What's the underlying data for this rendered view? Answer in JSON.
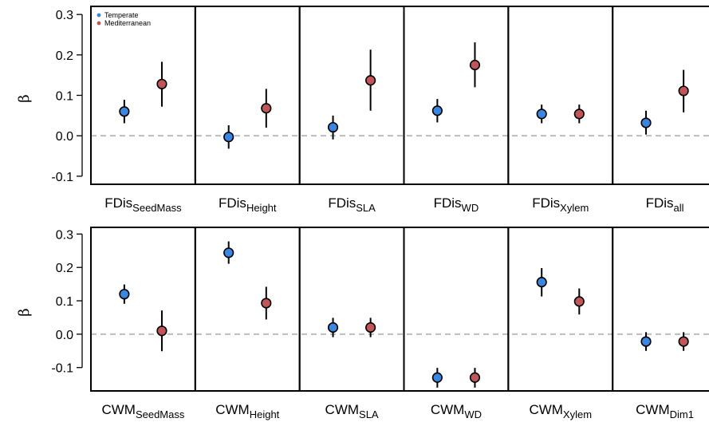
{
  "chart_data": [
    {
      "type": "scatter",
      "ylabel": "β",
      "ylim": [
        -0.12,
        0.32
      ],
      "yticks": [
        "0.3",
        "0.2",
        "0.1",
        "0.0",
        "-0.1"
      ],
      "ytick_values": [
        0.3,
        0.2,
        0.1,
        0.0,
        -0.1
      ],
      "reference_line": 0,
      "legend_placement": "top-left",
      "panels": [
        {
          "base": "FDis",
          "sub": "SeedMass"
        },
        {
          "base": "FDis",
          "sub": "Height"
        },
        {
          "base": "FDis",
          "sub": "SLA"
        },
        {
          "base": "FDis",
          "sub": "WD"
        },
        {
          "base": "FDis",
          "sub": "Xylem"
        },
        {
          "base": "FDis",
          "sub": "all"
        }
      ],
      "series": [
        {
          "name": "Temperate",
          "color": "#3a86e0",
          "values": [
            0.06,
            -0.003,
            0.021,
            0.062,
            0.054,
            0.032
          ],
          "lower": [
            0.031,
            -0.032,
            -0.009,
            0.033,
            0.031,
            0.003
          ],
          "upper": [
            0.089,
            0.026,
            0.05,
            0.091,
            0.077,
            0.062
          ]
        },
        {
          "name": "Mediterranean",
          "color": "#c0565a",
          "values": [
            0.128,
            0.068,
            0.137,
            0.175,
            0.054,
            0.111
          ],
          "lower": [
            0.072,
            0.02,
            0.062,
            0.12,
            0.031,
            0.058
          ],
          "upper": [
            0.183,
            0.116,
            0.213,
            0.231,
            0.077,
            0.163
          ]
        }
      ]
    },
    {
      "type": "scatter",
      "ylabel": "β",
      "ylim": [
        -0.17,
        0.32
      ],
      "yticks": [
        "0.3",
        "0.2",
        "0.1",
        "0.0",
        "-0.1"
      ],
      "ytick_values": [
        0.3,
        0.2,
        0.1,
        0.0,
        -0.1
      ],
      "reference_line": 0,
      "panels": [
        {
          "base": "CWM",
          "sub": "SeedMass"
        },
        {
          "base": "CWM",
          "sub": "Height"
        },
        {
          "base": "CWM",
          "sub": "SLA"
        },
        {
          "base": "CWM",
          "sub": "WD"
        },
        {
          "base": "CWM",
          "sub": "Xylem"
        },
        {
          "base": "CWM",
          "sub": "Dim1"
        }
      ],
      "series": [
        {
          "name": "Temperate",
          "color": "#3a86e0",
          "values": [
            0.12,
            0.244,
            0.02,
            -0.13,
            0.156,
            -0.022
          ],
          "lower": [
            0.091,
            0.211,
            -0.009,
            -0.16,
            0.113,
            -0.05
          ],
          "upper": [
            0.149,
            0.278,
            0.049,
            -0.101,
            0.198,
            0.006
          ]
        },
        {
          "name": "Mediterranean",
          "color": "#c0565a",
          "values": [
            0.01,
            0.093,
            0.02,
            -0.13,
            0.098,
            -0.022
          ],
          "lower": [
            -0.051,
            0.044,
            -0.009,
            -0.16,
            0.059,
            -0.05
          ],
          "upper": [
            0.071,
            0.142,
            0.049,
            -0.101,
            0.137,
            0.006
          ]
        }
      ]
    }
  ]
}
